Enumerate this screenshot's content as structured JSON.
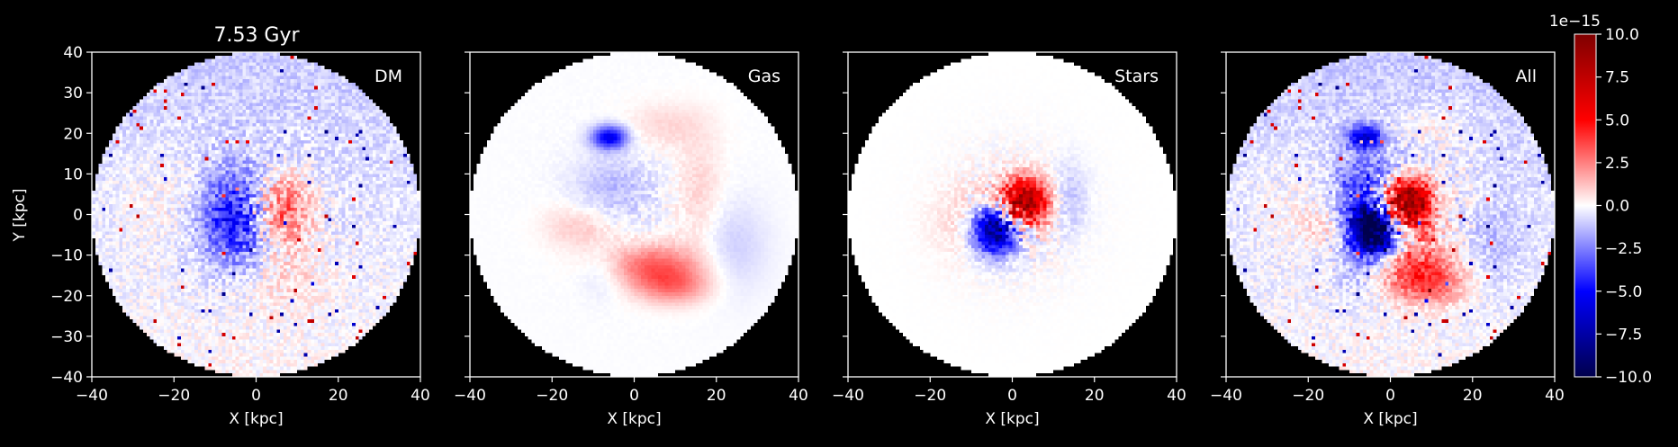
{
  "figure": {
    "title": "7.53 Gyr",
    "background_color": "#000000",
    "foreground_color": "#ffffff"
  },
  "chart_data": {
    "type": "heatmap",
    "colormap": "seismic",
    "quantity_unit_exponent": "1e−15",
    "color_limits": [
      -10.0,
      10.0
    ],
    "shared_y": true,
    "panels": [
      {
        "label": "DM",
        "description": "noisy pixel field, negative core at left-center, positive lobe right of center, faint positive lower-left"
      },
      {
        "label": "Gas",
        "description": "smooth structures: negative blob near (-5,18), positive arc south (0 to 15, -10 to -20), shell near x=15"
      },
      {
        "label": "Stars",
        "description": "compact core: positive upper-right, negative lower-left within ~10 kpc"
      },
      {
        "label": "All",
        "description": "combination of the three components"
      }
    ],
    "x_axis": {
      "label": "X [kpc]",
      "range": [
        -40,
        40
      ],
      "ticks": [
        "−40",
        "−20",
        "0",
        "20",
        "40"
      ]
    },
    "y_axis": {
      "label": "Y [kpc]",
      "range": [
        -40,
        40
      ],
      "ticks": [
        "−40",
        "−30",
        "−20",
        "−10",
        "0",
        "10",
        "20",
        "30",
        "40"
      ]
    },
    "colorbar": {
      "offset_label": "1e−15",
      "ticks": [
        "10.0",
        "7.5",
        "5.0",
        "2.5",
        "0.0",
        "−2.5",
        "−5.0",
        "−7.5",
        "−10.0"
      ],
      "tick_values": [
        10.0,
        7.5,
        5.0,
        2.5,
        0.0,
        -2.5,
        -5.0,
        -7.5,
        -10.0
      ]
    },
    "grid": false,
    "aperture_radius_kpc": 40
  }
}
